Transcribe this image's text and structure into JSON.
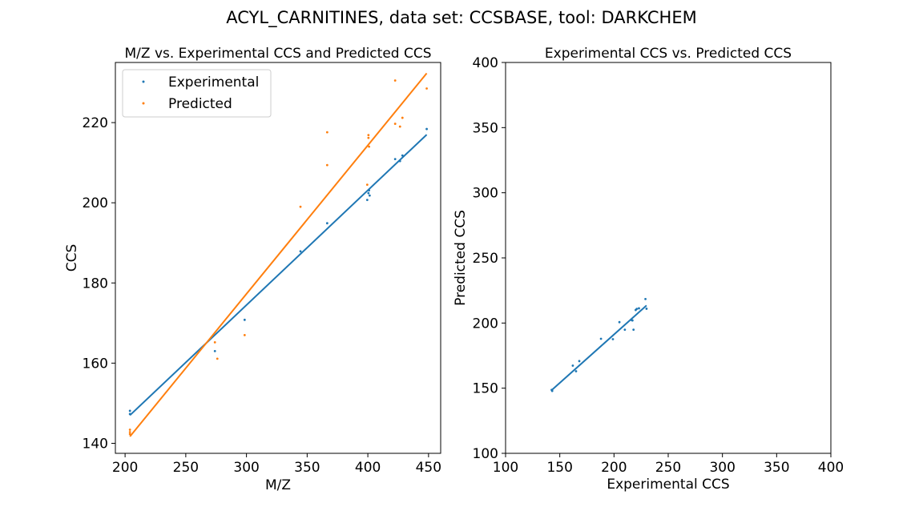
{
  "figure": {
    "suptitle": "ACYL_CARNITINES, data set: CCSBASE, tool: DARKCHEM"
  },
  "colors": {
    "experimental": "#1f77b4",
    "predicted": "#ff7f0e",
    "axis": "#000000"
  },
  "chart_data": [
    {
      "type": "scatter",
      "title": "M/Z vs. Experimental CCS and Predicted CCS",
      "xlabel": "M/Z",
      "ylabel": "CCS",
      "xlim": [
        192,
        460
      ],
      "ylim": [
        137.5,
        235
      ],
      "xticks": [
        200,
        250,
        300,
        350,
        400,
        450
      ],
      "yticks": [
        140,
        160,
        180,
        200,
        220
      ],
      "legend_position": "top-left",
      "series": [
        {
          "name": "Experimental",
          "color": "#1f77b4",
          "points": [
            [
              204,
              148.1
            ],
            [
              204,
              147.3
            ],
            [
              274,
              163.0
            ],
            [
              298.5,
              170.8
            ],
            [
              344.5,
              187.9
            ],
            [
              366.5,
              194.9
            ],
            [
              399.5,
              200.7
            ],
            [
              400.5,
              202.4
            ],
            [
              401,
              203.1
            ],
            [
              401.5,
              201.8
            ],
            [
              422.5,
              210.9
            ],
            [
              426.5,
              210.4
            ],
            [
              428.5,
              211.8
            ],
            [
              448.5,
              218.4
            ]
          ],
          "fit_line": [
            [
              204,
              147.0
            ],
            [
              448.5,
              217.0
            ]
          ]
        },
        {
          "name": "Predicted",
          "color": "#ff7f0e",
          "points": [
            [
              204,
              143.4
            ],
            [
              204,
              142.8
            ],
            [
              204,
              142.3
            ],
            [
              274,
              165.2
            ],
            [
              276,
              161.1
            ],
            [
              298.5,
              167.0
            ],
            [
              344.5,
              199.0
            ],
            [
              366.5,
              217.6
            ],
            [
              366.5,
              209.4
            ],
            [
              399.5,
              204.5
            ],
            [
              400.5,
              216.9
            ],
            [
              400.5,
              216.2
            ],
            [
              401,
              214.0
            ],
            [
              422.5,
              230.5
            ],
            [
              422.5,
              219.7
            ],
            [
              426.5,
              219.0
            ],
            [
              428.5,
              221.2
            ],
            [
              448.5,
              228.5
            ]
          ],
          "fit_line": [
            [
              204,
              141.7
            ],
            [
              448.5,
              232.3
            ]
          ]
        }
      ]
    },
    {
      "type": "scatter",
      "title": "Experimental CCS vs. Predicted CCS",
      "xlabel": "Experimental CCS",
      "ylabel": "Predicted CCS",
      "xlim": [
        100,
        400
      ],
      "ylim": [
        100,
        400
      ],
      "xticks": [
        100,
        150,
        200,
        250,
        300,
        350,
        400
      ],
      "yticks": [
        100,
        150,
        200,
        250,
        300,
        350,
        400
      ],
      "series": [
        {
          "color": "#1f77b4",
          "points": [
            [
              142.5,
              148.7
            ],
            [
              143,
              147.9
            ],
            [
              162,
              167.3
            ],
            [
              165,
              163.0
            ],
            [
              168,
              170.8
            ],
            [
              188,
              187.9
            ],
            [
              199,
              187.6
            ],
            [
              205,
              200.7
            ],
            [
              210,
              194.9
            ],
            [
              216,
              202.4
            ],
            [
              217,
              202.0
            ],
            [
              218,
              194.9
            ],
            [
              220,
              210.0
            ],
            [
              221,
              210.9
            ],
            [
              223,
              211.3
            ],
            [
              229,
              218.4
            ],
            [
              230,
              211.0
            ]
          ],
          "fit_line": [
            [
              142.5,
              148.5
            ],
            [
              230,
              213.5
            ]
          ]
        }
      ]
    }
  ]
}
